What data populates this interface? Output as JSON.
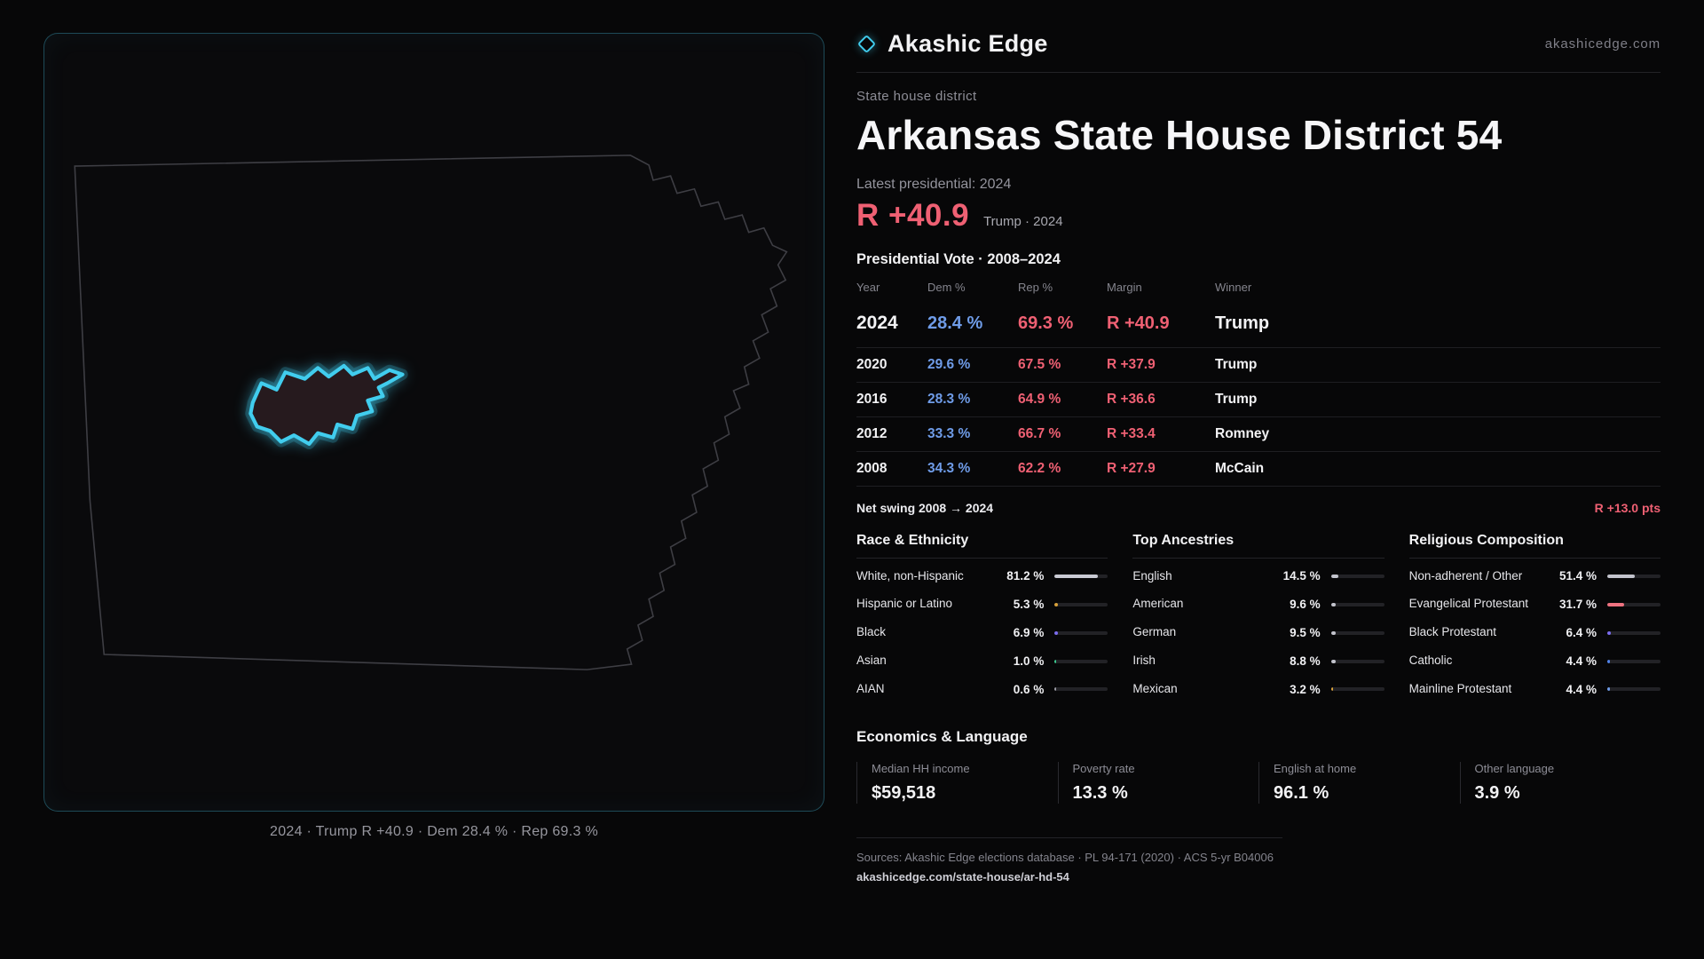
{
  "site": {
    "brand": "Akashic Edge",
    "domain": "akashicedge.com"
  },
  "colors": {
    "accent": "#41cdee",
    "rep": "#ef6073",
    "dem": "#6f9ce8"
  },
  "map": {
    "caption": "2024 · Trump R +40.9 · Dem 28.4 % · Rep 69.3 %"
  },
  "district": {
    "kicker": "State house district",
    "title": "Arkansas State House District 54",
    "latest_label": "Latest presidential: 2024",
    "margin_value": "R +40.9",
    "margin_context": "Trump · 2024"
  },
  "vote_table": {
    "title": "Presidential Vote · 2008–2024",
    "columns": [
      "Year",
      "Dem %",
      "Rep %",
      "Margin",
      "Winner"
    ],
    "rows": [
      {
        "year": "2024",
        "dem": "28.4 %",
        "rep": "69.3 %",
        "margin": "R +40.9",
        "winner": "Trump"
      },
      {
        "year": "2020",
        "dem": "29.6 %",
        "rep": "67.5 %",
        "margin": "R +37.9",
        "winner": "Trump"
      },
      {
        "year": "2016",
        "dem": "28.3 %",
        "rep": "64.9 %",
        "margin": "R +36.6",
        "winner": "Trump"
      },
      {
        "year": "2012",
        "dem": "33.3 %",
        "rep": "66.7 %",
        "margin": "R +33.4",
        "winner": "Romney"
      },
      {
        "year": "2008",
        "dem": "34.3 %",
        "rep": "62.2 %",
        "margin": "R +27.9",
        "winner": "McCain"
      }
    ],
    "net_swing_label": "Net swing 2008 → 2024",
    "net_swing_value": "R +13.0 pts"
  },
  "demographics": {
    "race": {
      "title": "Race & Ethnicity",
      "rows": [
        {
          "label": "White, non-Hispanic",
          "value": "81.2 %",
          "pct": 81.2,
          "color": "#c9cad3"
        },
        {
          "label": "Hispanic or Latino",
          "value": "5.3 %",
          "pct": 5.3,
          "color": "#d9a23a"
        },
        {
          "label": "Black",
          "value": "6.9 %",
          "pct": 6.9,
          "color": "#7b6cf0"
        },
        {
          "label": "Asian",
          "value": "1.0 %",
          "pct": 1.0,
          "color": "#3bc98f"
        },
        {
          "label": "AIAN",
          "value": "0.6 %",
          "pct": 0.6,
          "color": "#9a9aa4"
        }
      ]
    },
    "ancestries": {
      "title": "Top Ancestries",
      "rows": [
        {
          "label": "English",
          "value": "14.5 %",
          "pct": 14.5,
          "color": "#c2c3cc"
        },
        {
          "label": "American",
          "value": "9.6 %",
          "pct": 9.6,
          "color": "#c2c3cc"
        },
        {
          "label": "German",
          "value": "9.5 %",
          "pct": 9.5,
          "color": "#c2c3cc"
        },
        {
          "label": "Irish",
          "value": "8.8 %",
          "pct": 8.8,
          "color": "#c2c3cc"
        },
        {
          "label": "Mexican",
          "value": "3.2 %",
          "pct": 3.2,
          "color": "#d9a23a"
        }
      ]
    },
    "religion": {
      "title": "Religious Composition",
      "rows": [
        {
          "label": "Non-adherent / Other",
          "value": "51.4 %",
          "pct": 51.4,
          "color": "#c2c3cc"
        },
        {
          "label": "Evangelical Protestant",
          "value": "31.7 %",
          "pct": 31.7,
          "color": "#ef7280"
        },
        {
          "label": "Black Protestant",
          "value": "6.4 %",
          "pct": 6.4,
          "color": "#7b6cf0"
        },
        {
          "label": "Catholic",
          "value": "4.4 %",
          "pct": 4.4,
          "color": "#4f82e8"
        },
        {
          "label": "Mainline Protestant",
          "value": "4.4 %",
          "pct": 4.4,
          "color": "#6f9ce8"
        }
      ]
    }
  },
  "economics": {
    "title": "Economics & Language",
    "stats": [
      {
        "label": "Median HH income",
        "value": "$59,518"
      },
      {
        "label": "Poverty rate",
        "value": "13.3 %"
      },
      {
        "label": "English at home",
        "value": "96.1 %"
      },
      {
        "label": "Other language",
        "value": "3.9 %"
      }
    ]
  },
  "footer": {
    "sources": "Sources: Akashic Edge elections database · PL 94-171 (2020) · ACS 5-yr B04006",
    "link": "akashicedge.com/state-house/ar-hd-54"
  }
}
